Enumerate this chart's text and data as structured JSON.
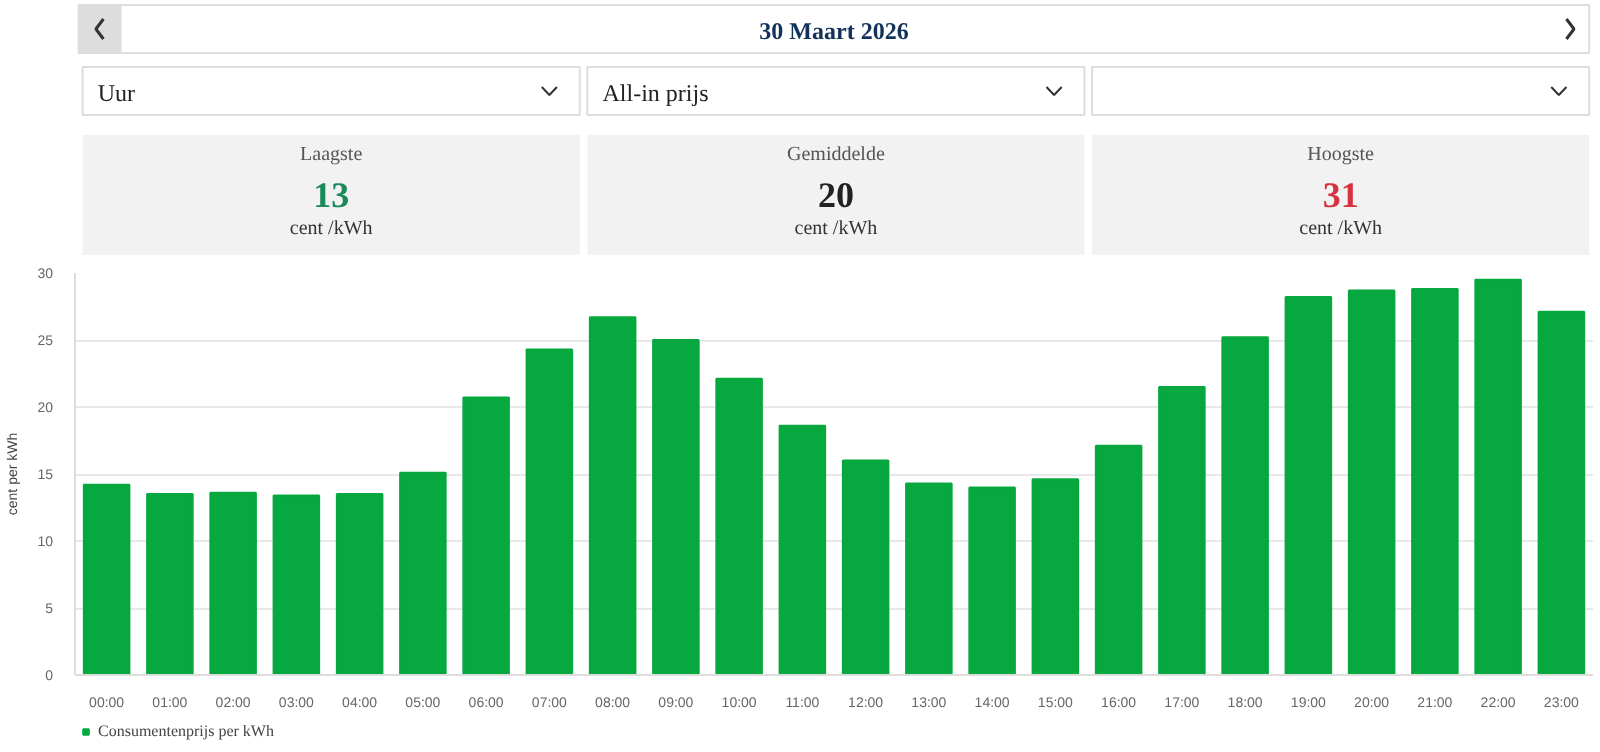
{
  "chart_data": [
    {
      "type": "other",
      "title": "30 Maart 2026",
      "annotations": [
        "Uur",
        "All-in prijs"
      ],
      "categories": [
        "Laagste",
        "Gemiddelde",
        "Hoogste"
      ],
      "values": [
        13,
        20,
        31
      ],
      "data_labels": true,
      "ylabel": "cent /kWh"
    },
    {
      "type": "bar",
      "categories": [
        "00:00",
        "01:00",
        "02:00",
        "03:00",
        "04:00",
        "05:00",
        "06:00",
        "07:00",
        "08:00",
        "09:00",
        "10:00",
        "11:00",
        "12:00",
        "13:00",
        "14:00",
        "15:00",
        "16:00",
        "17:00",
        "18:00",
        "19:00",
        "20:00",
        "21:00",
        "22:00",
        "23:00"
      ],
      "series": [
        {
          "name": "Consumentenprijs per kWh",
          "color": "#07a83f",
          "values": [
            14.2,
            13.5,
            13.6,
            13.4,
            13.5,
            15.1,
            20.7,
            24.3,
            26.7,
            25.0,
            22.1,
            18.6,
            16.0,
            14.3,
            14.0,
            14.6,
            17.1,
            21.5,
            25.2,
            28.2,
            28.7,
            28.8,
            29.5,
            27.1
          ]
        }
      ],
      "ylabel": "cent per kWh",
      "ylim": [
        0,
        30
      ],
      "yticks": [
        0,
        5,
        10,
        15,
        20,
        25,
        30
      ],
      "grid": "y",
      "legend": "bottom left"
    }
  ]
}
